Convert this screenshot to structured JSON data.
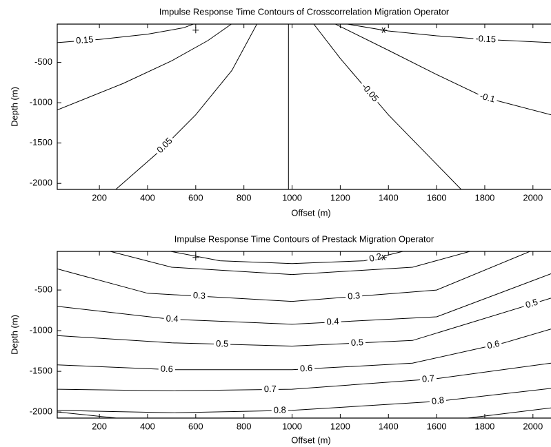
{
  "chart_data": [
    {
      "type": "contour",
      "title": "Impulse Response Time Contours of Crosscorrelation Migration Operator",
      "x_label": "Offset (m)",
      "y_label": "Depth (m)",
      "xlim": [
        25,
        2075
      ],
      "ylim": [
        -2075,
        -25
      ],
      "xticks": [
        200,
        400,
        600,
        800,
        1000,
        1200,
        1400,
        1600,
        1800,
        2000
      ],
      "yticks": [
        -500,
        -1000,
        -1500,
        -2000
      ],
      "contours": [
        {
          "level": 0.15,
          "x": [
            25,
            200,
            400,
            550,
            590
          ],
          "y": [
            -255,
            -215,
            -150,
            -70,
            -25
          ]
        },
        {
          "x": [
            25,
            300,
            500,
            650,
            748
          ],
          "y": [
            -1090,
            -760,
            -480,
            -230,
            -25
          ]
        },
        {
          "level": 0.05,
          "x": [
            268,
            450,
            600,
            750,
            854
          ],
          "y": [
            -2075,
            -1600,
            -1150,
            -600,
            -25
          ]
        },
        {
          "x": [
            985,
            985
          ],
          "y": [
            -2075,
            -25
          ]
        },
        {
          "level": -0.05,
          "x": [
            1090,
            1200,
            1400,
            1702
          ],
          "y": [
            -25,
            -450,
            -1150,
            -2075
          ]
        },
        {
          "level": -0.1,
          "x": [
            1180,
            1400,
            1600,
            1800,
            2075
          ],
          "y": [
            -25,
            -350,
            -650,
            -935,
            -1150
          ]
        },
        {
          "level": -0.15,
          "x": [
            1230,
            1400,
            1600,
            1800,
            2075
          ],
          "y": [
            -25,
            -110,
            -170,
            -215,
            -255
          ]
        }
      ],
      "sources": {
        "x": [
          600,
          1380
        ],
        "y": [
          -100,
          -100
        ]
      }
    },
    {
      "type": "contour",
      "title": "Impulse Response Time Contours of Prestack Migration Operator",
      "x_label": "Offset (m)",
      "y_label": "Depth (m)",
      "xlim": [
        25,
        2075
      ],
      "ylim": [
        -2075,
        -25
      ],
      "xticks": [
        200,
        400,
        600,
        800,
        1000,
        1200,
        1400,
        1600,
        1800,
        2000
      ],
      "yticks": [
        -500,
        -1000,
        -1500,
        -2000
      ],
      "contours": [
        {
          "level": 0.2,
          "x": [
            496,
            700,
            1000,
            1300,
            1460
          ],
          "y": [
            -25,
            -140,
            -175,
            -140,
            -25
          ]
        },
        {
          "x": [
            245,
            500,
            1000,
            1500,
            1739
          ],
          "y": [
            -25,
            -220,
            -310,
            -220,
            -25
          ]
        },
        {
          "level": 0.3,
          "x": [
            25,
            400,
            1000,
            1600,
            1988
          ],
          "y": [
            -240,
            -540,
            -640,
            -500,
            -25
          ]
        },
        {
          "level": 0.4,
          "x": [
            25,
            500,
            1000,
            1600,
            2075
          ],
          "y": [
            -700,
            -860,
            -920,
            -830,
            -300
          ]
        },
        {
          "level": 0.5,
          "x": [
            25,
            500,
            1000,
            1500,
            2075
          ],
          "y": [
            -1060,
            -1150,
            -1190,
            -1120,
            -600
          ]
        },
        {
          "level": 0.6,
          "x": [
            25,
            500,
            1000,
            1500,
            1880,
            2075
          ],
          "y": [
            -1420,
            -1480,
            -1480,
            -1400,
            -1150,
            -980
          ]
        },
        {
          "level": 0.7,
          "x": [
            25,
            500,
            1000,
            1600,
            2075
          ],
          "y": [
            -1720,
            -1740,
            -1720,
            -1590,
            -1400
          ]
        },
        {
          "level": 0.8,
          "x": [
            25,
            500,
            1000,
            1600,
            2075
          ],
          "y": [
            -1980,
            -2010,
            -1980,
            -1870,
            -1710
          ]
        },
        {
          "x": [
            25,
            270
          ],
          "y": [
            -2000,
            -2075
          ]
        },
        {
          "x": [
            1730,
            2075
          ],
          "y": [
            -2075,
            -1950
          ]
        }
      ],
      "sources": {
        "x": [
          600,
          1380
        ],
        "y": [
          -100,
          -100
        ]
      }
    }
  ]
}
